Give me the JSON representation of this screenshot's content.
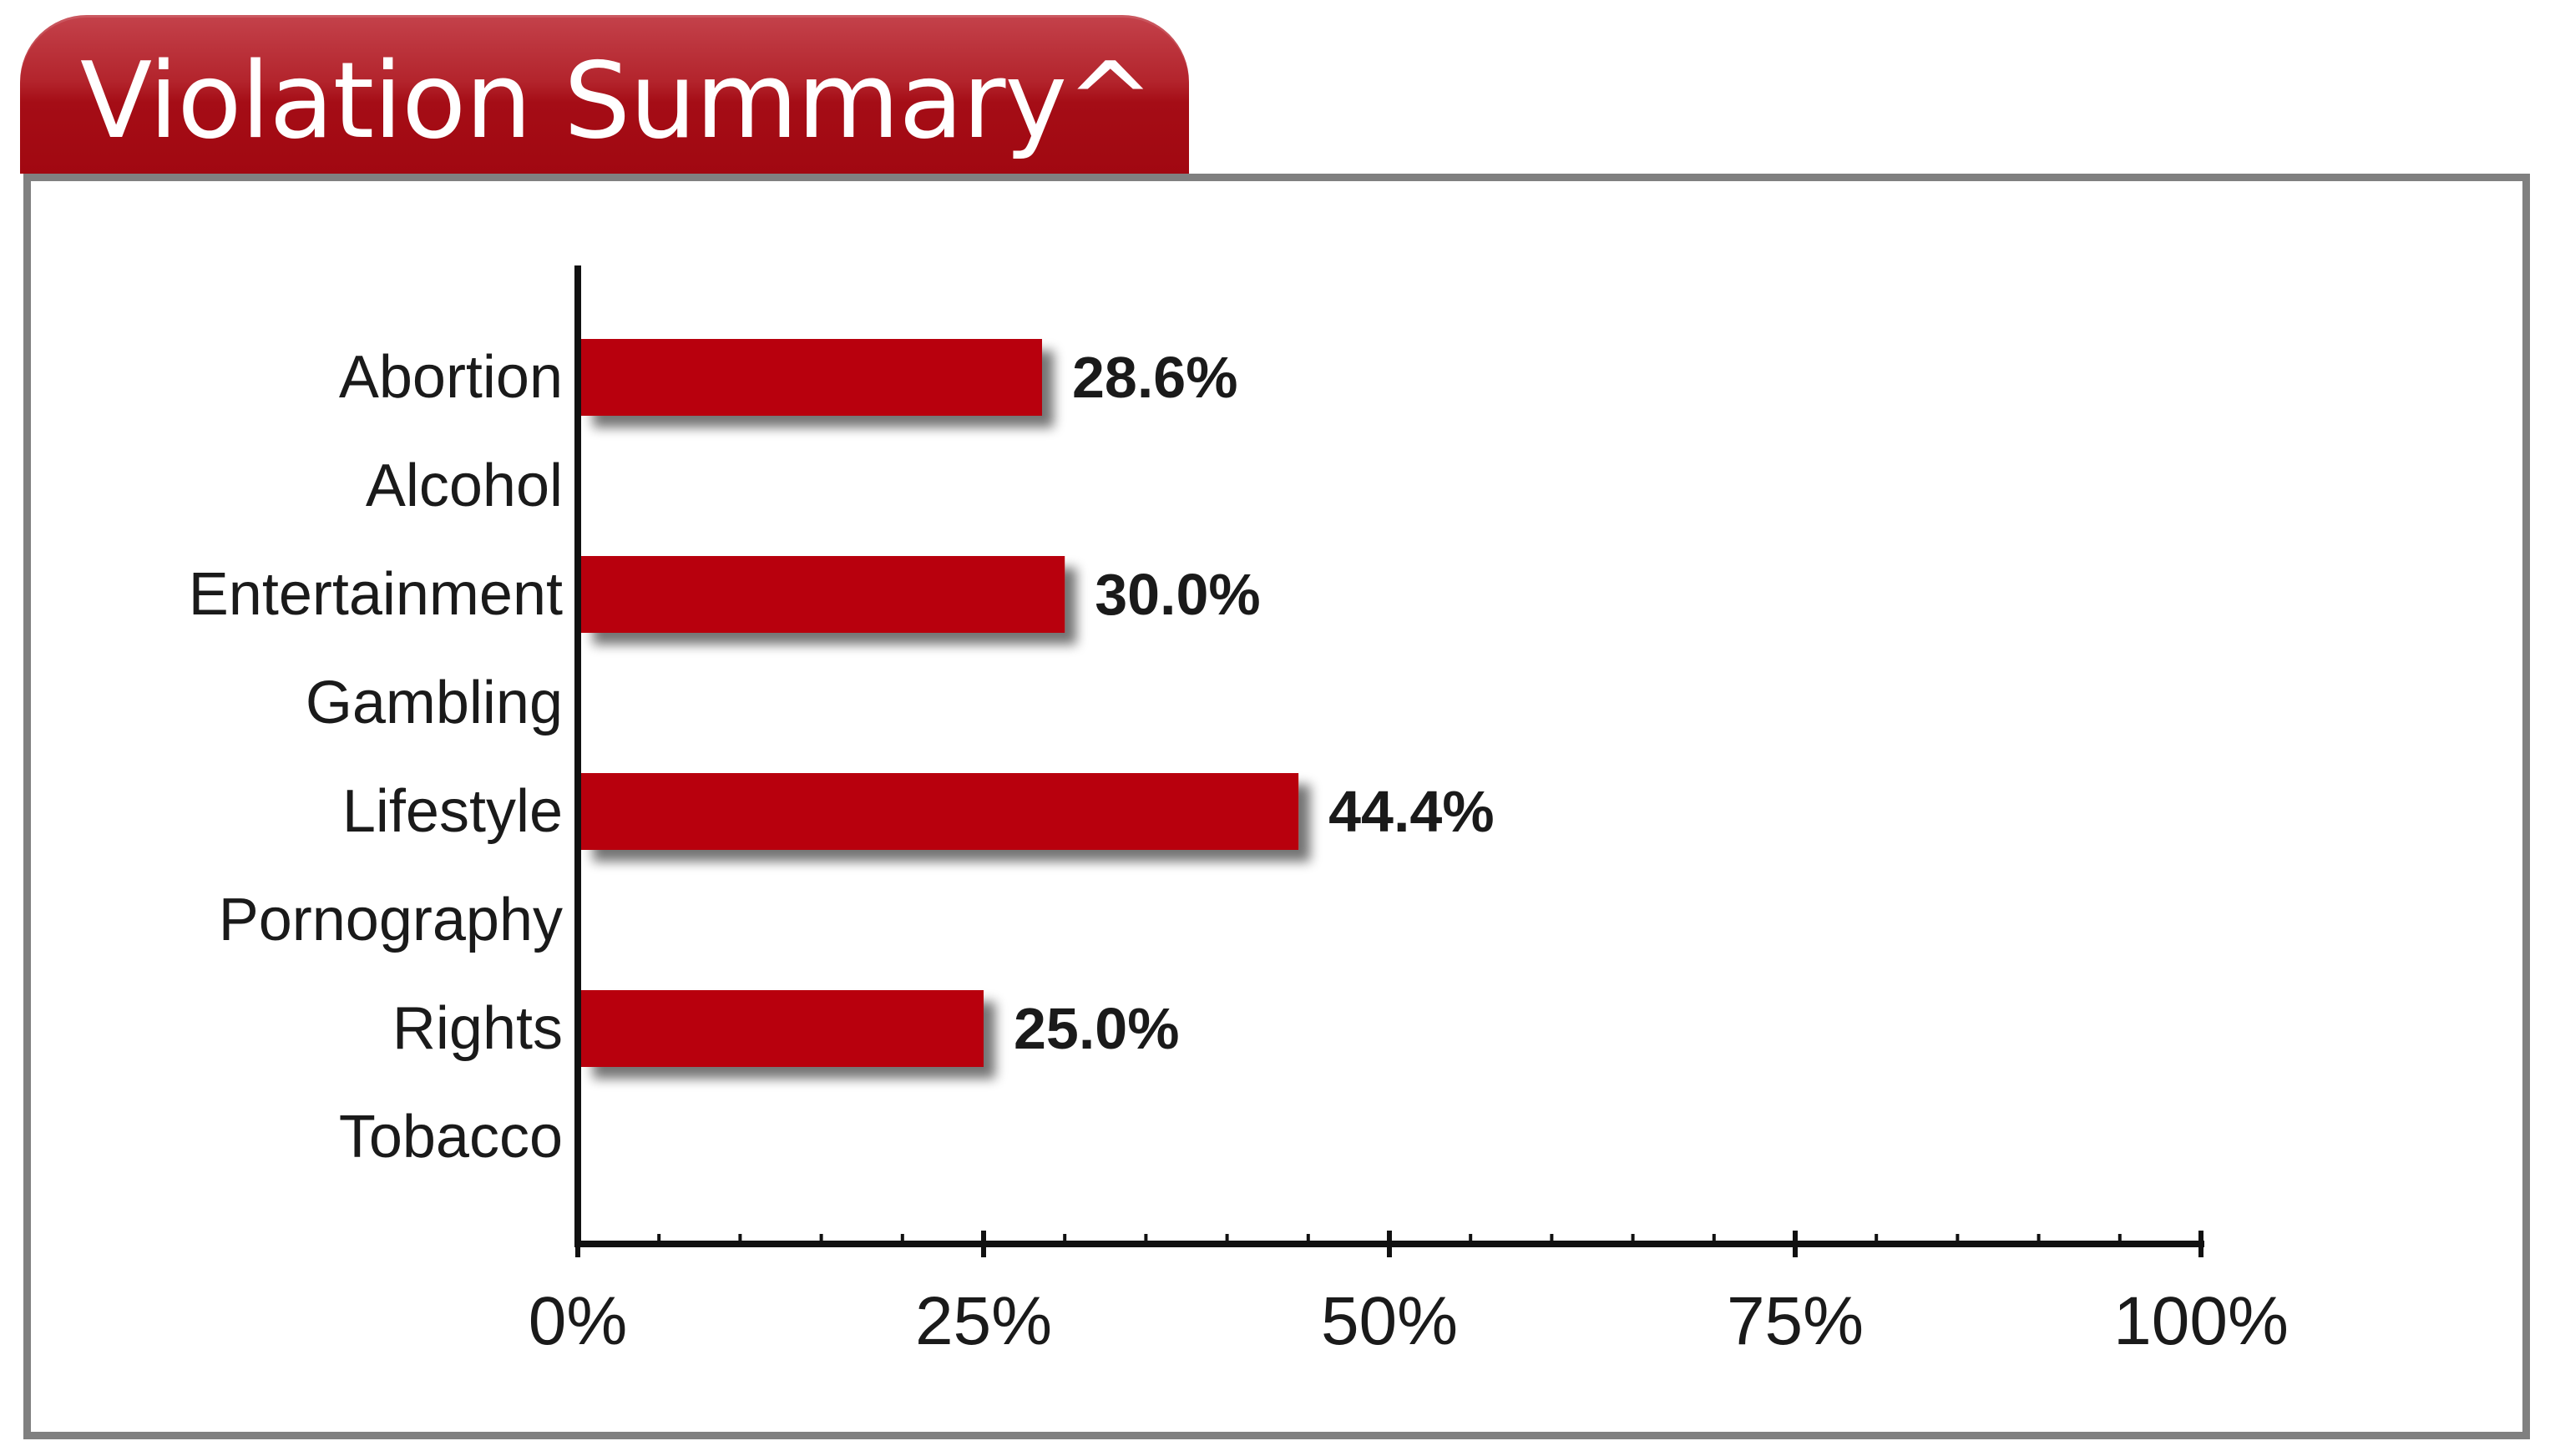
{
  "header": {
    "title": "Violation Summary^"
  },
  "colors": {
    "accent": "#b80209",
    "bar": "#b80209",
    "panel_border": "#808080",
    "text": "#1a1a1a"
  },
  "chart_data": {
    "type": "bar",
    "orientation": "horizontal",
    "title": "Violation Summary^",
    "categories": [
      "Abortion",
      "Alcohol",
      "Entertainment",
      "Gambling",
      "Lifestyle",
      "Pornography",
      "Rights",
      "Tobacco"
    ],
    "values": [
      28.6,
      null,
      30.0,
      null,
      44.4,
      null,
      25.0,
      null
    ],
    "data_labels": [
      "28.6%",
      "",
      "30.0%",
      "",
      "44.4%",
      "",
      "25.0%",
      ""
    ],
    "xlim": [
      0,
      100
    ],
    "xticks": [
      0,
      25,
      50,
      75,
      100
    ],
    "xtick_labels": [
      "0%",
      "25%",
      "50%",
      "75%",
      "100%"
    ],
    "xlabel": "",
    "ylabel": "",
    "grid": false,
    "legend": "none"
  }
}
